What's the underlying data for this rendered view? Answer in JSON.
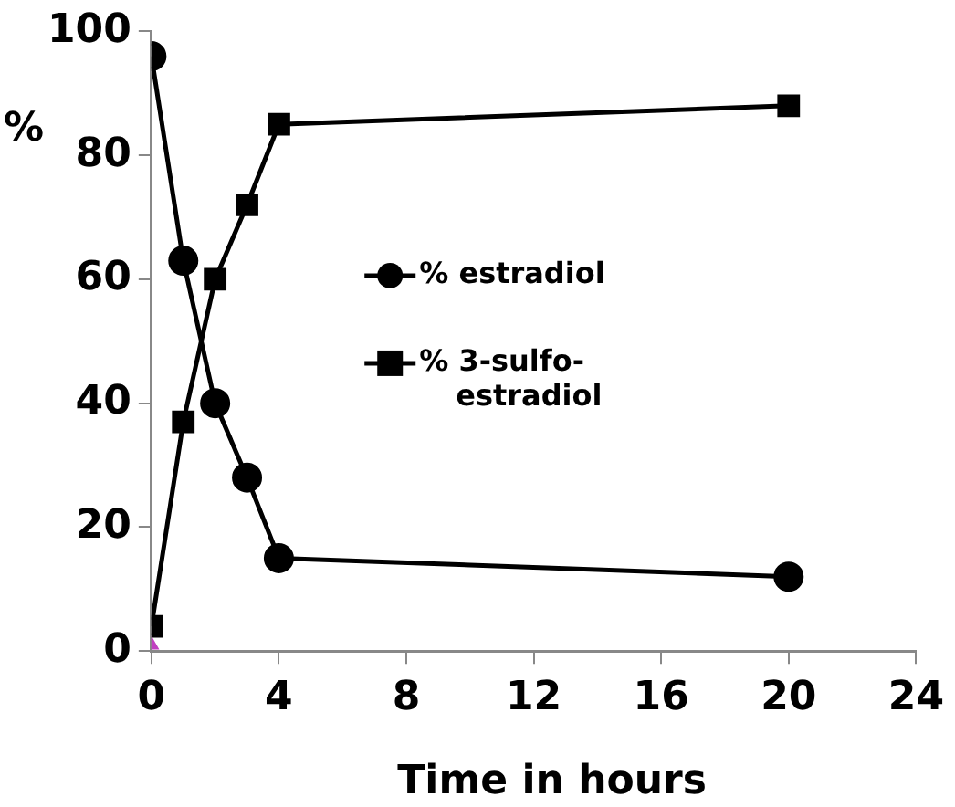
{
  "chart_data": {
    "type": "line",
    "xlabel": "Time in hours",
    "ylabel": "%",
    "xlim": [
      0,
      24
    ],
    "xticks": [
      0,
      4,
      8,
      12,
      16,
      20,
      24
    ],
    "ylim": [
      0,
      100
    ],
    "yticks": [
      0,
      20,
      40,
      60,
      80,
      100
    ],
    "grid": false,
    "legend": "center",
    "line_style": "solid",
    "series": [
      {
        "name": "% estradiol",
        "color": "#000000",
        "marker": "circle",
        "x": [
          0,
          1,
          2,
          3,
          4,
          20
        ],
        "values": [
          96,
          63,
          40,
          28,
          15,
          12
        ]
      },
      {
        "name": "% 3-sulfo-estradiol",
        "color": "#000000",
        "marker": "square",
        "x": [
          0,
          1,
          2,
          3,
          4,
          20
        ],
        "values": [
          4,
          37,
          60,
          72,
          85,
          88
        ]
      },
      {
        "type": "scatter",
        "color": "#c040c0",
        "marker": "triangle",
        "x": [
          0
        ],
        "values": [
          1
        ]
      }
    ]
  }
}
